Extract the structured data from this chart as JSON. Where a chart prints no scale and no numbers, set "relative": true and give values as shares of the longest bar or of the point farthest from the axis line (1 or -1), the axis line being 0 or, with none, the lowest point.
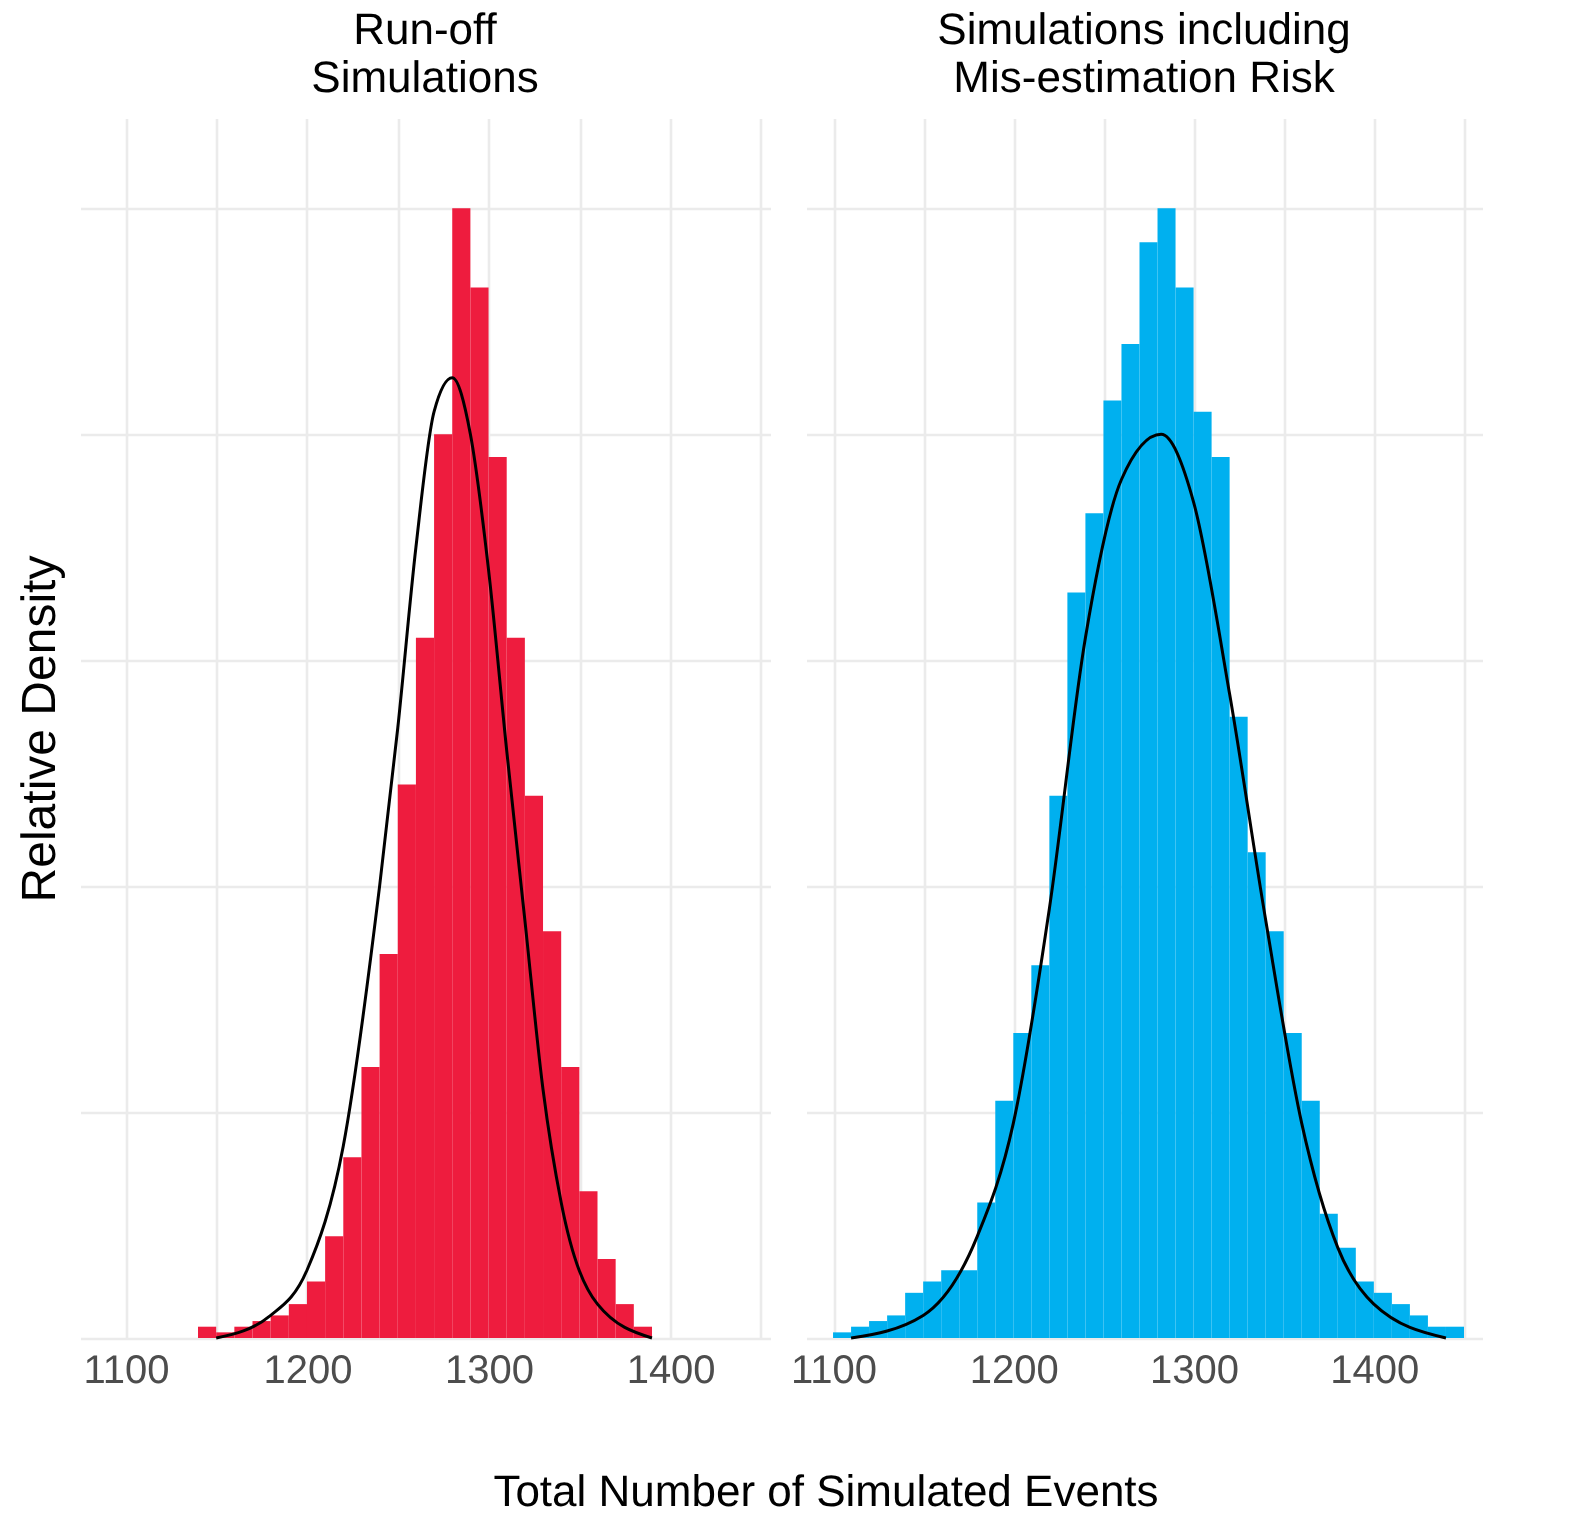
{
  "chart_data": [
    {
      "type": "histogram",
      "title": "Run-off\nSimulations",
      "ylabel": "Relative Density",
      "xlabel": "Total Number of Simulated Events",
      "relative": true,
      "color": "#ee1c3e",
      "grid": true,
      "xlim": [
        1075,
        1455
      ],
      "xticks": [
        1100,
        {
          "value": 1150,
          "label": null
        },
        1200,
        {
          "value": 1250,
          "label": null
        },
        1300,
        {
          "value": 1350,
          "label": null
        },
        1400,
        {
          "value": 1450,
          "label": null
        }
      ],
      "bins": [
        1140,
        1150,
        1160,
        1170,
        1180,
        1190,
        1200,
        1210,
        1220,
        1230,
        1240,
        1250,
        1260,
        1270,
        1280,
        1290,
        1300,
        1310,
        1320,
        1330,
        1340,
        1350,
        1360,
        1370,
        1380,
        1390
      ],
      "values": [
        0.01,
        0.005,
        0.01,
        0.015,
        0.02,
        0.03,
        0.05,
        0.09,
        0.16,
        0.24,
        0.34,
        0.49,
        0.62,
        0.8,
        1.0,
        0.93,
        0.78,
        0.62,
        0.48,
        0.36,
        0.24,
        0.13,
        0.07,
        0.03,
        0.01
      ],
      "series": [
        {
          "type": "line",
          "color": "#000000",
          "x": [
            1150,
            1180,
            1200,
            1220,
            1240,
            1250,
            1260,
            1270,
            1280,
            1290,
            1300,
            1310,
            1320,
            1330,
            1340,
            1360,
            1390
          ],
          "values": [
            0,
            0.02,
            0.06,
            0.17,
            0.4,
            0.54,
            0.7,
            0.82,
            0.85,
            0.8,
            0.68,
            0.52,
            0.37,
            0.22,
            0.12,
            0.03,
            0
          ]
        }
      ]
    },
    {
      "type": "histogram",
      "title": "Simulations including\nMis-estimation Risk",
      "relative": true,
      "color": "#00b0ef",
      "grid": true,
      "xlim": [
        1085,
        1460
      ],
      "xticks": [
        1100,
        {
          "value": 1150,
          "label": null
        },
        1200,
        {
          "value": 1250,
          "label": null
        },
        1300,
        {
          "value": 1350,
          "label": null
        },
        1400,
        {
          "value": 1450,
          "label": null
        }
      ],
      "bins": [
        1100,
        1110,
        1120,
        1130,
        1140,
        1150,
        1160,
        1170,
        1180,
        1190,
        1200,
        1210,
        1220,
        1230,
        1240,
        1250,
        1260,
        1270,
        1280,
        1290,
        1300,
        1310,
        1320,
        1330,
        1340,
        1350,
        1360,
        1370,
        1380,
        1390,
        1400,
        1410,
        1420,
        1430,
        1440,
        1450
      ],
      "values": [
        0.005,
        0.01,
        0.015,
        0.02,
        0.04,
        0.05,
        0.06,
        0.06,
        0.12,
        0.21,
        0.27,
        0.33,
        0.48,
        0.66,
        0.73,
        0.83,
        0.88,
        0.97,
        1.0,
        0.93,
        0.82,
        0.78,
        0.55,
        0.43,
        0.36,
        0.27,
        0.21,
        0.11,
        0.08,
        0.05,
        0.04,
        0.03,
        0.02,
        0.01,
        0.01
      ],
      "series": [
        {
          "type": "line",
          "color": "#000000",
          "x": [
            1110,
            1150,
            1180,
            1200,
            1220,
            1240,
            1260,
            1282,
            1300,
            1320,
            1340,
            1360,
            1380,
            1400,
            1440
          ],
          "values": [
            0,
            0.02,
            0.09,
            0.19,
            0.38,
            0.62,
            0.76,
            0.8,
            0.74,
            0.57,
            0.37,
            0.19,
            0.08,
            0.03,
            0
          ]
        }
      ]
    }
  ]
}
